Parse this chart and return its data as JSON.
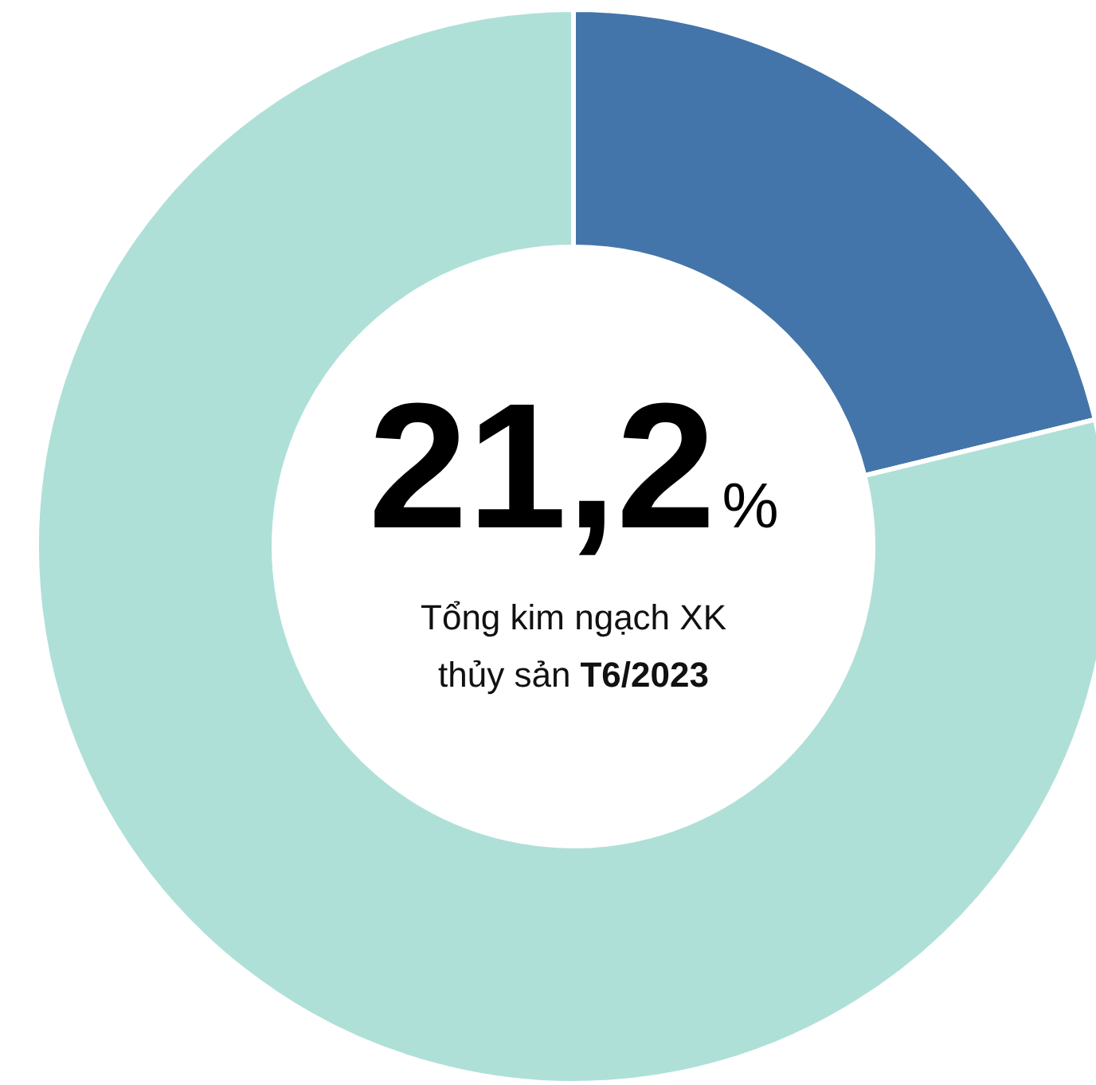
{
  "chart_data": {
    "type": "donut",
    "categories": [
      null,
      null
    ],
    "values": [
      21.2,
      78.8
    ],
    "colors": [
      "#4475aa",
      "#aee0d8"
    ],
    "annotations": [
      "21,2%",
      "Tổng kim ngạch XK",
      "thủy sản",
      "T6/2023"
    ]
  }
}
